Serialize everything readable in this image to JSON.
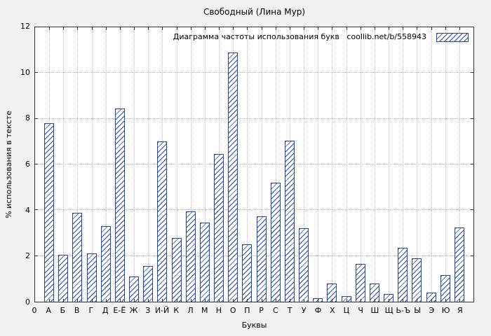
{
  "colors": {
    "bar": "#2446a8",
    "grid": "#b4b4b4",
    "plot_background": "#ffffff",
    "figure_background": "#f1f1f1"
  },
  "chart_data": {
    "type": "bar",
    "title": "Свободный (Лина Мур)",
    "legend_label": "Диаграмма частоты использования букв   coollib.net/b/558943",
    "legend_position": "top-right",
    "xlabel": "Буквы",
    "ylabel": "% использования в тексте",
    "origin_tick_label": "0",
    "ylim": [
      0,
      12
    ],
    "yticks": [
      0,
      2,
      4,
      6,
      8,
      10,
      12
    ],
    "grid": true,
    "bar_style": "hatched",
    "bar_color": "#2446a8",
    "categories": [
      "А",
      "Б",
      "В",
      "Г",
      "Д",
      "Е-Ё",
      "Ж",
      "З",
      "И-Й",
      "К",
      "Л",
      "М",
      "Н",
      "О",
      "П",
      "Р",
      "С",
      "Т",
      "У",
      "Ф",
      "Х",
      "Ц",
      "Ч",
      "Ш",
      "Щ",
      "Ь-Ъ",
      "Ы",
      "Э",
      "Ю",
      "Я"
    ],
    "values": [
      7.8,
      2.05,
      3.9,
      2.1,
      3.3,
      8.45,
      1.1,
      1.55,
      7.0,
      2.8,
      3.95,
      3.45,
      6.45,
      10.9,
      2.5,
      3.75,
      5.2,
      7.05,
      3.2,
      0.15,
      0.8,
      0.25,
      1.65,
      0.8,
      0.35,
      2.35,
      1.9,
      0.4,
      1.15,
      3.25
    ]
  }
}
